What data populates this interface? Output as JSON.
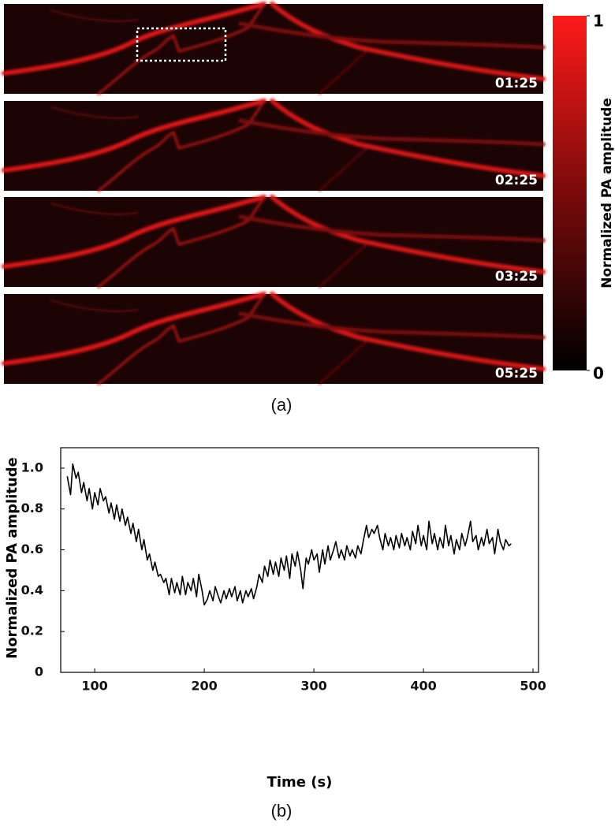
{
  "panel_a": {
    "caption": "(a)",
    "timestamps": [
      "01:25",
      "02:25",
      "03:25",
      "05:25"
    ],
    "colorbar": {
      "label": "Normalized PA amplitude",
      "ticks": [
        0,
        1
      ]
    }
  },
  "chart_data": {
    "type": "line",
    "caption": "(b)",
    "xlabel": "Time (s)",
    "ylabel": "Normalized PA amplitude",
    "xlim": [
      69,
      505
    ],
    "ylim": [
      0,
      1.1
    ],
    "xticks": [
      100,
      200,
      300,
      400,
      500
    ],
    "yticks": [
      0,
      0.2,
      0.4,
      0.6,
      0.8,
      {
        "value": 1,
        "label": "1.0"
      }
    ],
    "series": [
      {
        "color": "#000000",
        "x": [
          75,
          78,
          80,
          83,
          85,
          88,
          90,
          93,
          95,
          98,
          100,
          103,
          105,
          108,
          110,
          113,
          115,
          118,
          120,
          123,
          125,
          128,
          130,
          133,
          135,
          138,
          140,
          143,
          145,
          148,
          150,
          153,
          155,
          158,
          160,
          163,
          165,
          168,
          170,
          173,
          175,
          178,
          180,
          183,
          185,
          188,
          190,
          193,
          195,
          198,
          200,
          203,
          205,
          208,
          210,
          213,
          215,
          218,
          220,
          223,
          225,
          228,
          230,
          233,
          235,
          238,
          240,
          243,
          245,
          248,
          250,
          253,
          255,
          258,
          260,
          263,
          265,
          268,
          270,
          273,
          275,
          278,
          280,
          283,
          285,
          288,
          290,
          293,
          295,
          298,
          300,
          303,
          305,
          308,
          310,
          313,
          315,
          318,
          320,
          323,
          325,
          328,
          330,
          333,
          335,
          338,
          340,
          343,
          345,
          348,
          350,
          353,
          355,
          358,
          360,
          363,
          365,
          368,
          370,
          373,
          375,
          378,
          380,
          383,
          385,
          388,
          390,
          393,
          395,
          398,
          400,
          403,
          405,
          408,
          410,
          413,
          415,
          418,
          420,
          423,
          425,
          428,
          430,
          433,
          435,
          438,
          440,
          443,
          445,
          448,
          450,
          453,
          455,
          458,
          460,
          463,
          465,
          468,
          470,
          473,
          475,
          478,
          480
        ],
        "values": [
          0.96,
          0.87,
          1.02,
          0.95,
          0.98,
          0.88,
          0.93,
          0.84,
          0.9,
          0.8,
          0.88,
          0.82,
          0.9,
          0.84,
          0.86,
          0.78,
          0.83,
          0.75,
          0.82,
          0.74,
          0.8,
          0.72,
          0.76,
          0.68,
          0.73,
          0.64,
          0.7,
          0.6,
          0.65,
          0.55,
          0.58,
          0.5,
          0.54,
          0.47,
          0.48,
          0.44,
          0.46,
          0.38,
          0.46,
          0.39,
          0.44,
          0.38,
          0.47,
          0.38,
          0.44,
          0.4,
          0.46,
          0.37,
          0.48,
          0.4,
          0.33,
          0.36,
          0.4,
          0.35,
          0.42,
          0.37,
          0.34,
          0.4,
          0.36,
          0.41,
          0.37,
          0.42,
          0.35,
          0.4,
          0.34,
          0.4,
          0.37,
          0.41,
          0.36,
          0.42,
          0.48,
          0.44,
          0.52,
          0.47,
          0.55,
          0.48,
          0.54,
          0.47,
          0.56,
          0.5,
          0.57,
          0.46,
          0.58,
          0.52,
          0.59,
          0.5,
          0.41,
          0.56,
          0.53,
          0.6,
          0.55,
          0.58,
          0.49,
          0.6,
          0.53,
          0.62,
          0.55,
          0.6,
          0.64,
          0.56,
          0.6,
          0.55,
          0.62,
          0.57,
          0.6,
          0.56,
          0.62,
          0.58,
          0.64,
          0.72,
          0.66,
          0.7,
          0.68,
          0.72,
          0.66,
          0.6,
          0.68,
          0.62,
          0.66,
          0.6,
          0.67,
          0.61,
          0.68,
          0.62,
          0.66,
          0.6,
          0.69,
          0.63,
          0.72,
          0.62,
          0.67,
          0.6,
          0.74,
          0.63,
          0.68,
          0.6,
          0.66,
          0.61,
          0.72,
          0.62,
          0.67,
          0.58,
          0.65,
          0.6,
          0.68,
          0.62,
          0.66,
          0.74,
          0.64,
          0.67,
          0.6,
          0.66,
          0.62,
          0.7,
          0.63,
          0.66,
          0.58,
          0.7,
          0.64,
          0.6,
          0.65,
          0.62,
          0.63
        ]
      }
    ]
  }
}
